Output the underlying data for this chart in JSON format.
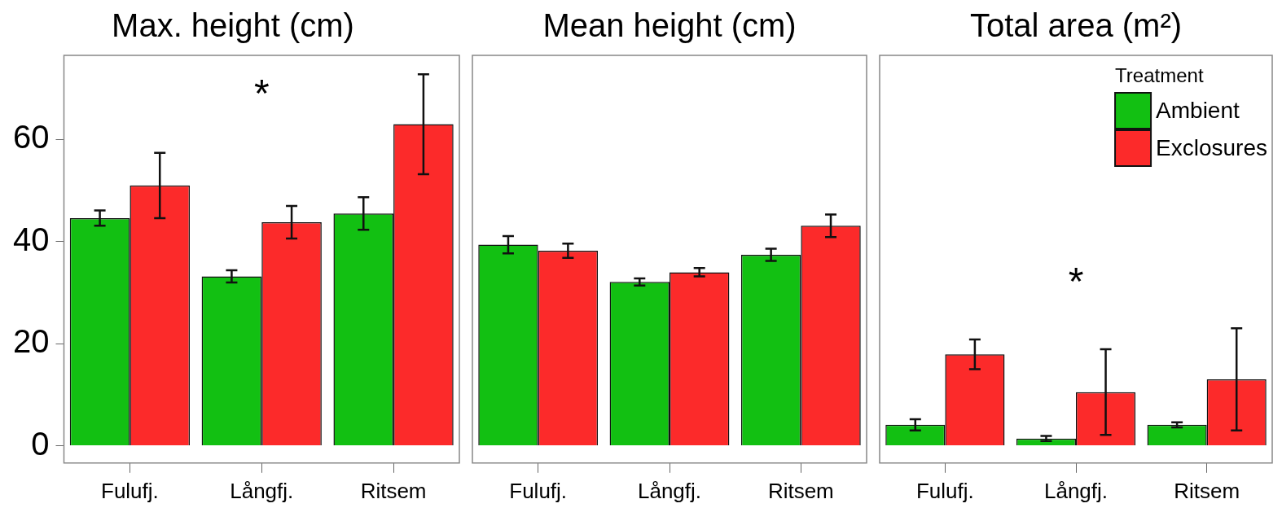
{
  "chart_data": [
    {
      "type": "bar",
      "title": "Max. height (cm)",
      "categories": [
        "Fulufj.",
        "Långfj.",
        "Ritsem"
      ],
      "ylim": [
        -3.4,
        76.5
      ],
      "yticks": [
        0,
        20,
        40,
        60
      ],
      "grid": false,
      "legend": false,
      "series": [
        {
          "color": "#12c012",
          "values": [
            44.6,
            33.2,
            45.5
          ],
          "errors": [
            1.5,
            1.2,
            3.2
          ]
        },
        {
          "color": "#fc2a2a",
          "values": [
            51.0,
            43.8,
            63.0
          ],
          "errors": [
            6.4,
            3.2,
            9.8
          ]
        }
      ],
      "annotations": [
        "*"
      ]
    },
    {
      "type": "bar",
      "title": "Mean height (cm)",
      "categories": [
        "Fulufj.",
        "Långfj.",
        "Ritsem"
      ],
      "ylim": [
        -3.4,
        76.5
      ],
      "yticks": [
        0,
        20,
        40,
        60
      ],
      "grid": false,
      "legend": false,
      "tick_labels": "x",
      "series": [
        {
          "color": "#12c012",
          "values": [
            39.4,
            32.1,
            37.4
          ],
          "errors": [
            1.7,
            0.7,
            1.2
          ]
        },
        {
          "color": "#fc2a2a",
          "values": [
            38.2,
            34.0,
            43.1
          ],
          "errors": [
            1.4,
            0.8,
            2.2
          ]
        }
      ]
    },
    {
      "type": "bar",
      "title": "Total area (m²)",
      "categories": [
        "Fulufj.",
        "Långfj.",
        "Ritsem"
      ],
      "ylim": [
        -3.4,
        76.5
      ],
      "yticks": [
        0,
        20,
        40,
        60
      ],
      "grid": false,
      "legend": "top right",
      "legend_title": "Treatment",
      "tick_labels": "x",
      "series": [
        {
          "name": "Ambient",
          "color": "#12c012",
          "values": [
            4.1,
            1.4,
            4.1
          ],
          "errors": [
            1.1,
            0.5,
            0.5
          ]
        },
        {
          "name": "Exclosures",
          "color": "#fc2a2a",
          "values": [
            17.9,
            10.5,
            13.0
          ],
          "errors": [
            2.9,
            8.4,
            10.0
          ]
        }
      ],
      "annotations": [
        "*"
      ]
    }
  ]
}
